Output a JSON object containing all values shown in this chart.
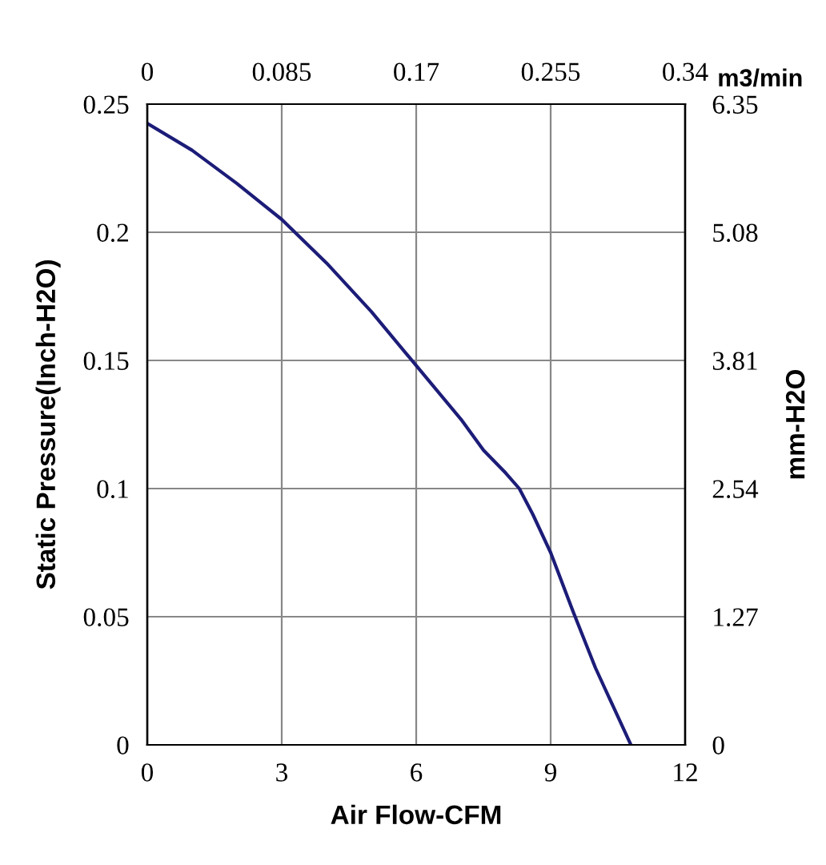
{
  "chart_data": {
    "type": "line",
    "xlabel": "Air Flow-CFM",
    "ylabel": "Static Pressure(Inch-H2O)",
    "y2label": "mm-H2O",
    "x2label": "m3/min",
    "xlim": [
      0,
      12
    ],
    "xticks": [
      0,
      3,
      6,
      9,
      12
    ],
    "ylim": [
      0,
      0.25
    ],
    "yticks": [
      0,
      0.05,
      0.1,
      0.15,
      0.2,
      0.25
    ],
    "x2lim": [
      0,
      0.34
    ],
    "x2ticks": [
      0,
      0.085,
      0.17,
      0.255,
      0.34
    ],
    "y2lim": [
      0,
      6.35
    ],
    "y2ticks": [
      0,
      1.27,
      2.54,
      3.81,
      5.08,
      6.35
    ],
    "grid": true,
    "legend": false,
    "marker": "none",
    "line_style": "solid",
    "series": [
      {
        "color": "#1c1c78",
        "x": [
          0,
          1,
          2,
          3,
          4,
          5,
          6,
          7,
          7.5,
          8,
          8.3,
          8.6,
          9,
          9.5,
          10,
          10.79
        ],
        "values": [
          0.2425,
          0.232,
          0.219,
          0.205,
          0.188,
          0.169,
          0.148,
          0.127,
          0.115,
          0.106,
          0.1,
          0.09,
          0.075,
          0.052,
          0.03,
          0
        ]
      }
    ]
  }
}
